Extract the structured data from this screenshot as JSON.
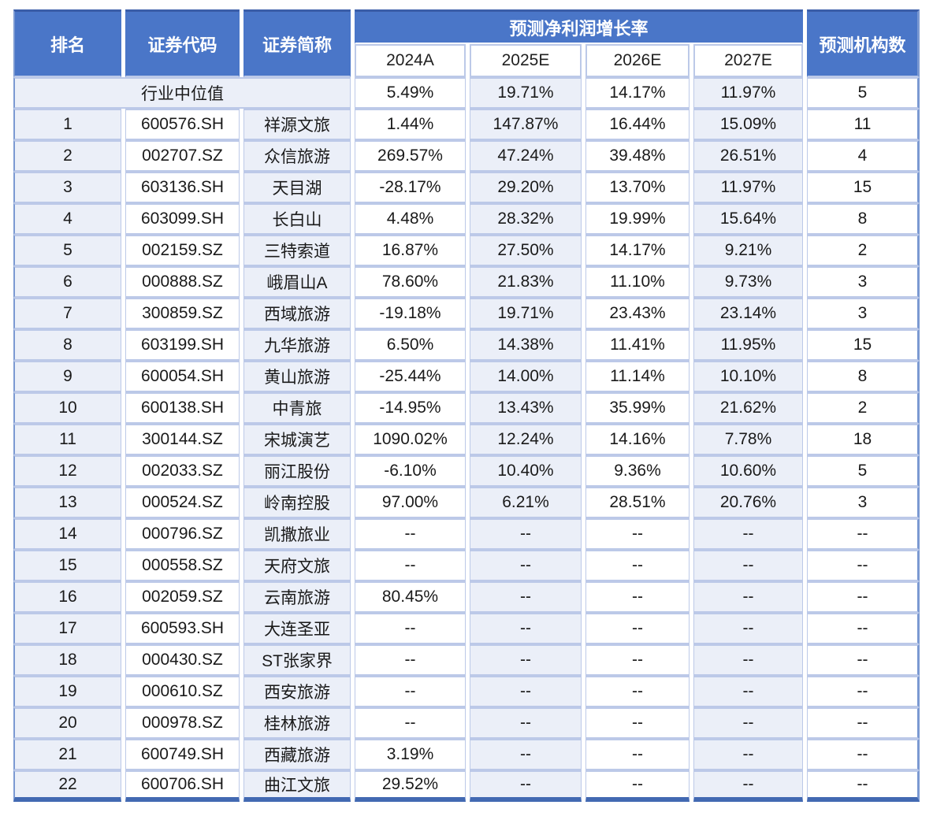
{
  "chart_data": {
    "type": "table",
    "header": {
      "rank": "排名",
      "code": "证券代码",
      "name": "证券简称",
      "growth_group": "预测净利润增长率",
      "years": [
        "2024A",
        "2025E",
        "2026E",
        "2027E"
      ],
      "institutions": "预测机构数"
    },
    "median_row": {
      "label": "行业中位值",
      "growth": [
        "5.49%",
        "19.71%",
        "14.17%",
        "11.97%"
      ],
      "institutions": "5"
    },
    "rows": [
      {
        "rank": "1",
        "code": "600576.SH",
        "name": "祥源文旅",
        "growth": [
          "1.44%",
          "147.87%",
          "16.44%",
          "15.09%"
        ],
        "institutions": "11"
      },
      {
        "rank": "2",
        "code": "002707.SZ",
        "name": "众信旅游",
        "growth": [
          "269.57%",
          "47.24%",
          "39.48%",
          "26.51%"
        ],
        "institutions": "4"
      },
      {
        "rank": "3",
        "code": "603136.SH",
        "name": "天目湖",
        "growth": [
          "-28.17%",
          "29.20%",
          "13.70%",
          "11.97%"
        ],
        "institutions": "15"
      },
      {
        "rank": "4",
        "code": "603099.SH",
        "name": "长白山",
        "growth": [
          "4.48%",
          "28.32%",
          "19.99%",
          "15.64%"
        ],
        "institutions": "8"
      },
      {
        "rank": "5",
        "code": "002159.SZ",
        "name": "三特索道",
        "growth": [
          "16.87%",
          "27.50%",
          "14.17%",
          "9.21%"
        ],
        "institutions": "2"
      },
      {
        "rank": "6",
        "code": "000888.SZ",
        "name": "峨眉山A",
        "growth": [
          "78.60%",
          "21.83%",
          "11.10%",
          "9.73%"
        ],
        "institutions": "3"
      },
      {
        "rank": "7",
        "code": "300859.SZ",
        "name": "西域旅游",
        "growth": [
          "-19.18%",
          "19.71%",
          "23.43%",
          "23.14%"
        ],
        "institutions": "3"
      },
      {
        "rank": "8",
        "code": "603199.SH",
        "name": "九华旅游",
        "growth": [
          "6.50%",
          "14.38%",
          "11.41%",
          "11.95%"
        ],
        "institutions": "15"
      },
      {
        "rank": "9",
        "code": "600054.SH",
        "name": "黄山旅游",
        "growth": [
          "-25.44%",
          "14.00%",
          "11.14%",
          "10.10%"
        ],
        "institutions": "8"
      },
      {
        "rank": "10",
        "code": "600138.SH",
        "name": "中青旅",
        "growth": [
          "-14.95%",
          "13.43%",
          "35.99%",
          "21.62%"
        ],
        "institutions": "2"
      },
      {
        "rank": "11",
        "code": "300144.SZ",
        "name": "宋城演艺",
        "growth": [
          "1090.02%",
          "12.24%",
          "14.16%",
          "7.78%"
        ],
        "institutions": "18"
      },
      {
        "rank": "12",
        "code": "002033.SZ",
        "name": "丽江股份",
        "growth": [
          "-6.10%",
          "10.40%",
          "9.36%",
          "10.60%"
        ],
        "institutions": "5"
      },
      {
        "rank": "13",
        "code": "000524.SZ",
        "name": "岭南控股",
        "growth": [
          "97.00%",
          "6.21%",
          "28.51%",
          "20.76%"
        ],
        "institutions": "3"
      },
      {
        "rank": "14",
        "code": "000796.SZ",
        "name": "凯撒旅业",
        "growth": [
          "--",
          "--",
          "--",
          "--"
        ],
        "institutions": "--"
      },
      {
        "rank": "15",
        "code": "000558.SZ",
        "name": "天府文旅",
        "growth": [
          "--",
          "--",
          "--",
          "--"
        ],
        "institutions": "--"
      },
      {
        "rank": "16",
        "code": "002059.SZ",
        "name": "云南旅游",
        "growth": [
          "80.45%",
          "--",
          "--",
          "--"
        ],
        "institutions": "--"
      },
      {
        "rank": "17",
        "code": "600593.SH",
        "name": "大连圣亚",
        "growth": [
          "--",
          "--",
          "--",
          "--"
        ],
        "institutions": "--"
      },
      {
        "rank": "18",
        "code": "000430.SZ",
        "name": "ST张家界",
        "growth": [
          "--",
          "--",
          "--",
          "--"
        ],
        "institutions": "--"
      },
      {
        "rank": "19",
        "code": "000610.SZ",
        "name": "西安旅游",
        "growth": [
          "--",
          "--",
          "--",
          "--"
        ],
        "institutions": "--"
      },
      {
        "rank": "20",
        "code": "000978.SZ",
        "name": "桂林旅游",
        "growth": [
          "--",
          "--",
          "--",
          "--"
        ],
        "institutions": "--"
      },
      {
        "rank": "21",
        "code": "600749.SH",
        "name": "西藏旅游",
        "growth": [
          "3.19%",
          "--",
          "--",
          "--"
        ],
        "institutions": "--"
      },
      {
        "rank": "22",
        "code": "600706.SH",
        "name": "曲江文旅",
        "growth": [
          "29.52%",
          "--",
          "--",
          "--"
        ],
        "institutions": "--"
      }
    ]
  },
  "colors": {
    "header_bg": "#4a76c8",
    "header_text": "#ffffff",
    "band_fill": "#ebeff8",
    "plain_fill": "#ffffff",
    "grid_border": "#bcc9e8",
    "outer_side": "#7b99d2",
    "top_border": "#3a5da8",
    "bottom_border": "#4269b2",
    "text": "#1a1a1a"
  }
}
